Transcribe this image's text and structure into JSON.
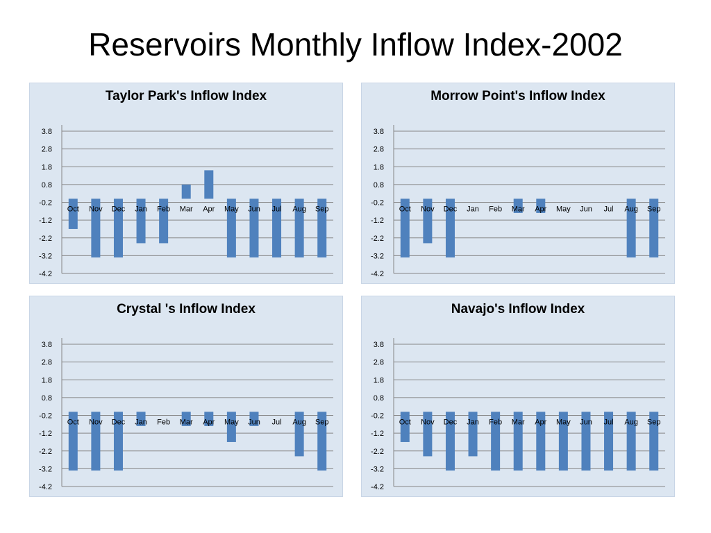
{
  "slide": {
    "title": "Reservoirs Monthly Inflow Index-2002"
  },
  "colors": {
    "bar": "#4f81bd",
    "panel_bg": "#dce6f1",
    "grid": "#868686"
  },
  "chart_data": [
    {
      "type": "bar",
      "title": "Taylor Park's Inflow Index",
      "categories": [
        "Oct",
        "Nov",
        "Dec",
        "Jan",
        "Feb",
        "Mar",
        "Apr",
        "May",
        "Jun",
        "Jul",
        "Aug",
        "Sep"
      ],
      "values": [
        -1.7,
        -3.3,
        -3.3,
        -2.5,
        -2.5,
        0.8,
        1.6,
        -3.3,
        -3.3,
        -3.3,
        -3.3,
        -3.3
      ],
      "yticks": [
        3.8,
        2.8,
        1.8,
        0.8,
        -0.2,
        -1.2,
        -2.2,
        -3.2,
        -4.2
      ],
      "ylim": [
        -4.2,
        3.8
      ],
      "grid": true
    },
    {
      "type": "bar",
      "title": "Morrow Point's Inflow Index",
      "categories": [
        "Oct",
        "Nov",
        "Dec",
        "Jan",
        "Feb",
        "Mar",
        "Apr",
        "May",
        "Jun",
        "Jul",
        "Aug",
        "Sep"
      ],
      "values": [
        -3.3,
        -2.5,
        -3.3,
        0,
        0,
        -0.8,
        -0.8,
        0,
        0,
        0,
        -3.3,
        -3.3
      ],
      "yticks": [
        3.8,
        2.8,
        1.8,
        0.8,
        -0.2,
        -1.2,
        -2.2,
        -3.2,
        -4.2
      ],
      "ylim": [
        -4.2,
        3.8
      ],
      "grid": true
    },
    {
      "type": "bar",
      "title": "Crystal 's Inflow Index",
      "categories": [
        "Oct",
        "Nov",
        "Dec",
        "Jan",
        "Feb",
        "Mar",
        "Apr",
        "May",
        "Jun",
        "Jul",
        "Aug",
        "Sep"
      ],
      "values": [
        -3.3,
        -3.3,
        -3.3,
        -0.8,
        0,
        -0.8,
        -0.8,
        -1.7,
        -0.8,
        0,
        -2.5,
        -3.3
      ],
      "yticks": [
        3.8,
        2.8,
        1.8,
        0.8,
        -0.2,
        -1.2,
        -2.2,
        -3.2,
        -4.2
      ],
      "ylim": [
        -4.2,
        3.8
      ],
      "grid": true
    },
    {
      "type": "bar",
      "title": "Navajo's Inflow Index",
      "categories": [
        "Oct",
        "Nov",
        "Dec",
        "Jan",
        "Feb",
        "Mar",
        "Apr",
        "May",
        "Jun",
        "Jul",
        "Aug",
        "Sep"
      ],
      "values": [
        -1.7,
        -2.5,
        -3.3,
        -2.5,
        -3.3,
        -3.3,
        -3.3,
        -3.3,
        -3.3,
        -3.3,
        -3.3,
        -3.3
      ],
      "yticks": [
        3.8,
        2.8,
        1.8,
        0.8,
        -0.2,
        -1.2,
        -2.2,
        -3.2,
        -4.2
      ],
      "ylim": [
        -4.2,
        3.8
      ],
      "grid": true
    }
  ]
}
